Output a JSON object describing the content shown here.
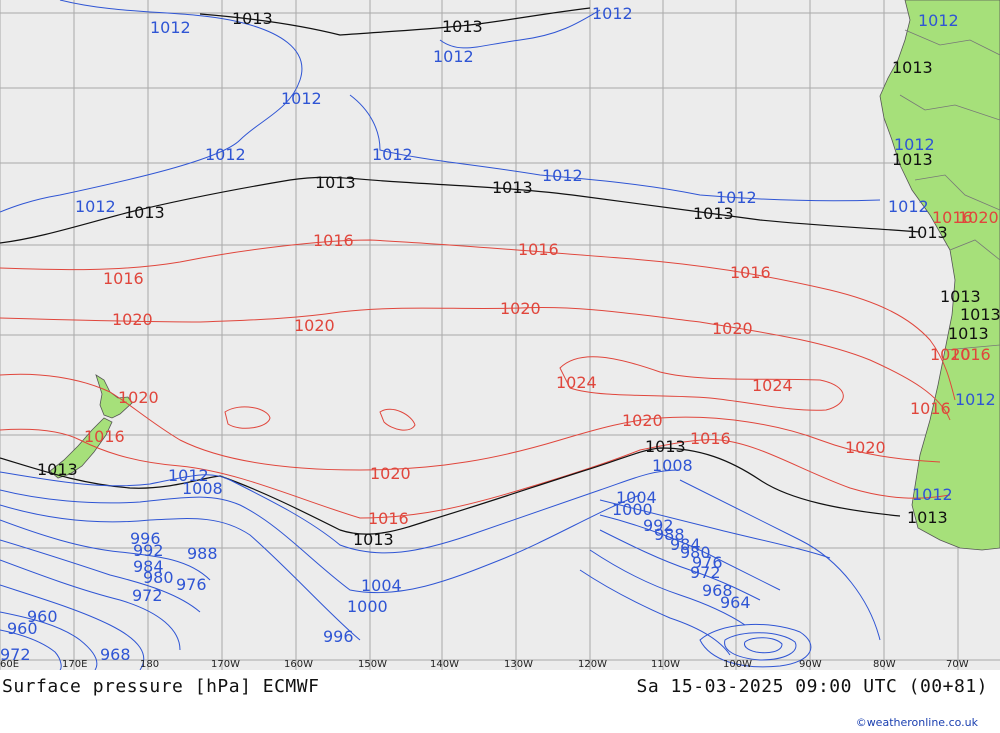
{
  "title": "Surface pressure [hPa] ECMWF",
  "valid_time": "Sa 15-03-2025 09:00 UTC (00+81)",
  "credit": "©weatheronline.co.uk",
  "colors": {
    "ocean": "#ececec",
    "land": "#a6e07a",
    "grid": "#a9a9a9",
    "isobar_low": "#2f55d4",
    "isobar_high": "#e0463c",
    "isobar_1013": "#111111"
  },
  "longitude_labels": [
    "60E",
    "170E",
    "180",
    "170W",
    "160W",
    "150W",
    "140W",
    "130W",
    "120W",
    "110W",
    "100W",
    "90W",
    "80W",
    "70W"
  ],
  "isobar_labels": {
    "black": [
      "1013",
      "1013",
      "1013",
      "1013",
      "1013",
      "1013",
      "1013",
      "1013",
      "1013",
      "1013",
      "1013",
      "1013",
      "1013",
      "1013",
      "1013",
      "1013"
    ],
    "blue": [
      "1012",
      "1012",
      "1012",
      "1012",
      "1012",
      "1012",
      "1012",
      "1012",
      "1012",
      "1012",
      "1012",
      "1012",
      "1012",
      "1012",
      "1012",
      "1008",
      "1008",
      "1004",
      "1004",
      "1000",
      "1000",
      "996",
      "996",
      "992",
      "992",
      "988",
      "988",
      "984",
      "984",
      "980",
      "980",
      "976",
      "976",
      "972",
      "972",
      "972",
      "968",
      "968",
      "964",
      "960",
      "960"
    ],
    "red": [
      "1016",
      "1016",
      "1016",
      "1016",
      "1016",
      "1016",
      "1016",
      "1016",
      "1016",
      "1020",
      "1020",
      "1020",
      "1020",
      "1020",
      "1020",
      "1020",
      "1020",
      "1020",
      "1024",
      "1024",
      "1020",
      "1016"
    ]
  }
}
